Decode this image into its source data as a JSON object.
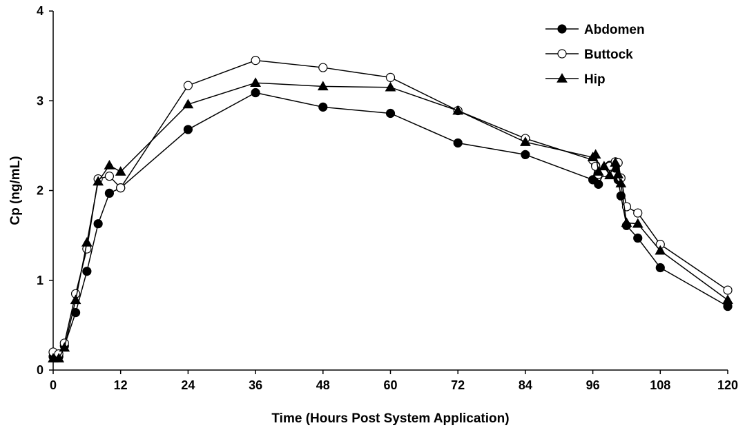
{
  "chart_data": {
    "type": "line",
    "title": "",
    "xlabel": "Time (Hours Post System Application)",
    "ylabel": "Cp (ng/mL)",
    "xlim": [
      0,
      120
    ],
    "ylim": [
      0,
      4
    ],
    "xticks": [
      0,
      12,
      24,
      36,
      48,
      60,
      72,
      84,
      96,
      108,
      120
    ],
    "yticks": [
      0,
      1,
      2,
      3,
      4
    ],
    "grid": false,
    "legend_position": "top-right",
    "series": [
      {
        "name": "Abdomen",
        "marker": "filled-circle",
        "color": "#000000",
        "x": [
          0,
          1,
          2,
          4,
          6,
          8,
          10,
          12,
          24,
          36,
          48,
          60,
          72,
          84,
          96,
          96.5,
          97,
          98,
          99,
          100,
          100.5,
          101,
          102,
          104,
          108,
          120
        ],
        "y": [
          0.15,
          0.15,
          0.27,
          0.64,
          1.1,
          1.63,
          1.97,
          2.03,
          2.68,
          3.09,
          2.93,
          2.86,
          2.53,
          2.4,
          2.12,
          2.28,
          2.07,
          2.2,
          2.28,
          2.25,
          2.12,
          1.94,
          1.61,
          1.47,
          1.14,
          0.71
        ]
      },
      {
        "name": "Buttock",
        "marker": "open-circle",
        "color": "#000000",
        "x": [
          0,
          1,
          2,
          4,
          6,
          8,
          10,
          12,
          24,
          36,
          48,
          60,
          72,
          84,
          96,
          96.5,
          97,
          98,
          99,
          100,
          100.5,
          101,
          102,
          104,
          108,
          120
        ],
        "y": [
          0.2,
          0.18,
          0.3,
          0.85,
          1.35,
          2.13,
          2.16,
          2.03,
          3.17,
          3.45,
          3.37,
          3.26,
          2.89,
          2.58,
          2.34,
          2.27,
          2.18,
          2.2,
          2.27,
          2.32,
          2.31,
          2.14,
          1.82,
          1.75,
          1.4,
          0.89
        ]
      },
      {
        "name": "Hip",
        "marker": "filled-triangle",
        "color": "#000000",
        "x": [
          0,
          1,
          2,
          4,
          6,
          8,
          10,
          12,
          24,
          36,
          48,
          60,
          72,
          84,
          96,
          96.5,
          97,
          98,
          99,
          100,
          100.5,
          101,
          102,
          104,
          108,
          120
        ],
        "y": [
          0.13,
          0.13,
          0.25,
          0.78,
          1.42,
          2.1,
          2.28,
          2.21,
          2.96,
          3.2,
          3.16,
          3.15,
          2.89,
          2.54,
          2.37,
          2.4,
          2.21,
          2.27,
          2.17,
          2.31,
          2.18,
          2.08,
          1.64,
          1.63,
          1.33,
          0.78
        ]
      }
    ]
  }
}
